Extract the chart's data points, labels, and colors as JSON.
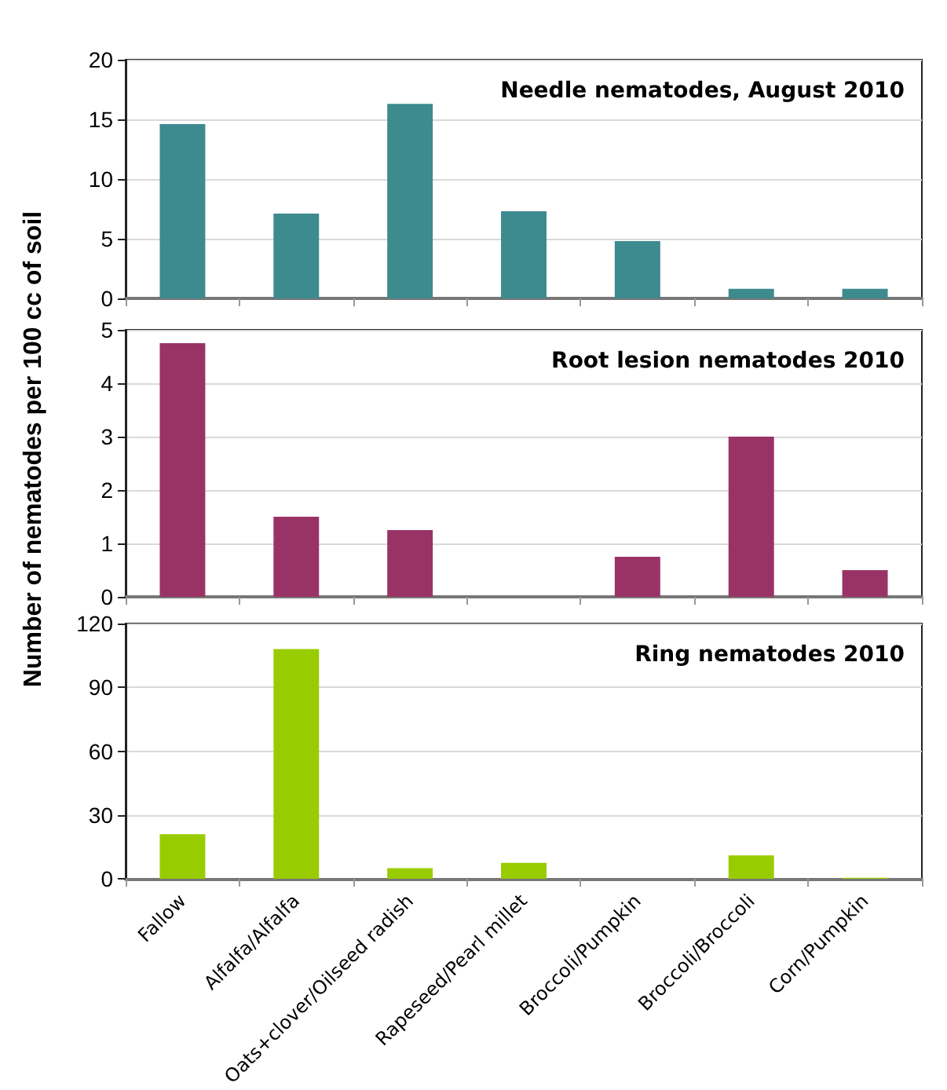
{
  "chart_data": [
    {
      "type": "bar",
      "title": "Needle nematodes, August 2010",
      "values": [
        14.6,
        7.1,
        16.3,
        7.3,
        4.8,
        0.8,
        0.8
      ],
      "color": "#3d8a8f",
      "ylim": [
        0,
        20
      ],
      "yticks": [
        0,
        5,
        10,
        15,
        20
      ],
      "grid": "y",
      "tick_labels": "y"
    },
    {
      "type": "bar",
      "title": "Root lesion nematodes 2010",
      "ylabel": "Number of nematodes per 100 cc of soil",
      "values": [
        4.75,
        1.5,
        1.25,
        0,
        0.75,
        3,
        0.5
      ],
      "color": "#993366",
      "ylim": [
        0,
        5
      ],
      "yticks": [
        0,
        1,
        2,
        3,
        4,
        5
      ],
      "grid": "y",
      "tick_labels": "y"
    },
    {
      "type": "bar",
      "title": "Ring nematodes 2010",
      "categories": [
        "Fallow",
        "Alfalfa/Alfalfa",
        "Oats+clover/Oilseed radish",
        "Rapeseed/Pearl millet",
        "Broccoli/Pumpkin",
        "Broccoli/Broccoli",
        "Corn/Pumpkin"
      ],
      "values": [
        21,
        108,
        5,
        7.5,
        0,
        11,
        0.5
      ],
      "color": "#99cc00",
      "ylim": [
        0,
        120
      ],
      "yticks": [
        0,
        30,
        60,
        90,
        120
      ],
      "grid": "y"
    }
  ]
}
